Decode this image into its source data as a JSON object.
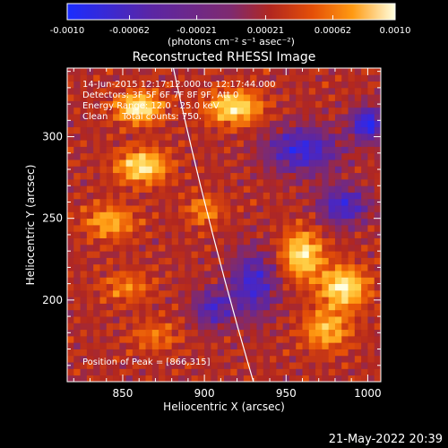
{
  "chart_data": {
    "type": "heatmap",
    "title": "Reconstructed RHESSI Image",
    "xlabel": "Heliocentric X (arcsec)",
    "ylabel": "Heliocentric Y (arcsec)",
    "xlim": [
      816,
      1008
    ],
    "ylim": [
      150,
      342
    ],
    "x_ticks": [
      850,
      900,
      950,
      1000
    ],
    "y_ticks": [
      200,
      250,
      300
    ],
    "colorbar": {
      "label": "(photons cm⁻² s⁻¹ asec⁻²)",
      "range": [
        -0.001,
        0.001
      ],
      "ticks": [
        "-0.0010",
        "-0.00062",
        "-0.00021",
        "0.00021",
        "0.00062",
        "0.0010"
      ],
      "tick_values": [
        -0.001,
        -0.00062,
        -0.00021,
        0.00021,
        0.00062,
        0.001
      ],
      "colormap": [
        "#1a2cff",
        "#3d27d8",
        "#5a26a6",
        "#7f2a6f",
        "#b2271f",
        "#e55007",
        "#ff9a12",
        "#ffd24a",
        "#ffffe0"
      ]
    },
    "annotations": {
      "time_range": "14-Jun-2015 12:17:12.000 to 12:17:44.000",
      "detectors": "Detectors: 3F 5F 6F 7F 8F 9F, Att 0",
      "energy_range": "Energy Range: 12.0 - 25.0 keV",
      "clean": "Clean     Total counts: 750.",
      "peak": "Position of Peak = [866,315]"
    },
    "peak": {
      "x": 866,
      "y": 315
    },
    "limb": {
      "x_top": 881,
      "x_bottom": 930
    },
    "features": [
      {
        "x": 860,
        "y": 318,
        "v": 0.00095,
        "sx": 14,
        "sy": 9
      },
      {
        "x": 862,
        "y": 282,
        "v": 0.0009,
        "sx": 15,
        "sy": 10
      },
      {
        "x": 842,
        "y": 248,
        "v": 0.0006,
        "sx": 15,
        "sy": 10
      },
      {
        "x": 852,
        "y": 208,
        "v": 0.0004,
        "sx": 15,
        "sy": 9
      },
      {
        "x": 900,
        "y": 255,
        "v": 0.00045,
        "sx": 11,
        "sy": 9
      },
      {
        "x": 918,
        "y": 318,
        "v": 0.0009,
        "sx": 16,
        "sy": 10
      },
      {
        "x": 960,
        "y": 228,
        "v": 0.0009,
        "sx": 12,
        "sy": 14
      },
      {
        "x": 985,
        "y": 208,
        "v": 0.00095,
        "sx": 14,
        "sy": 12
      },
      {
        "x": 975,
        "y": 182,
        "v": 0.00065,
        "sx": 14,
        "sy": 12
      },
      {
        "x": 870,
        "y": 178,
        "v": 0.00035,
        "sx": 15,
        "sy": 9
      },
      {
        "x": 960,
        "y": 292,
        "v": -0.00075,
        "sx": 22,
        "sy": 14
      },
      {
        "x": 985,
        "y": 258,
        "v": -0.0007,
        "sx": 15,
        "sy": 12
      },
      {
        "x": 1000,
        "y": 308,
        "v": -0.0009,
        "sx": 10,
        "sy": 10
      },
      {
        "x": 930,
        "y": 210,
        "v": -0.0007,
        "sx": 14,
        "sy": 20
      },
      {
        "x": 905,
        "y": 195,
        "v": -0.0006,
        "sx": 12,
        "sy": 12
      }
    ]
  },
  "footer": {
    "timestamp": "21-May-2022 20:39"
  }
}
